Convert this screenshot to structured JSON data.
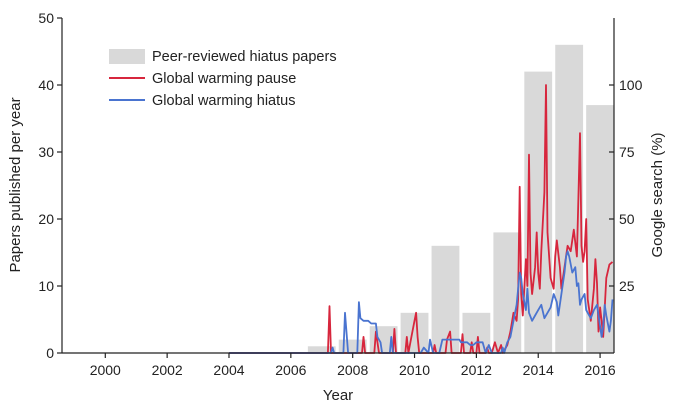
{
  "chart_data": {
    "type": "bar",
    "title": "",
    "xlabel": "Year",
    "ylabel": "Papers published per year",
    "y2label": "Google search (%)",
    "xlim": [
      1998.6,
      2016.45
    ],
    "ylim": [
      0,
      50
    ],
    "y2lim": [
      0,
      125
    ],
    "x_ticks": [
      "2000",
      "2002",
      "2004",
      "2006",
      "2008",
      "2010",
      "2012",
      "2014",
      "2016"
    ],
    "y_ticks": [
      "0",
      "10",
      "20",
      "30",
      "40",
      "50"
    ],
    "y2_ticks": [
      "25",
      "50",
      "75",
      "100"
    ],
    "legend": {
      "position": "top-left",
      "items": [
        {
          "label": "Peer-reviewed hiatus papers",
          "kind": "bar",
          "color": "#d9d9d9"
        },
        {
          "label": "Global warming pause",
          "kind": "line",
          "color": "#d7263d"
        },
        {
          "label": "Global warming hiatus",
          "kind": "line",
          "color": "#4a74d0"
        }
      ]
    },
    "bars": {
      "name": "Peer-reviewed hiatus papers",
      "color": "#d9d9d9",
      "years": [
        2007,
        2008,
        2009,
        2010,
        2011,
        2012,
        2013,
        2014,
        2015,
        2016
      ],
      "values": [
        1,
        2,
        4,
        6,
        16,
        6,
        18,
        42,
        46,
        37
      ]
    },
    "series": [
      {
        "name": "Global warming pause",
        "color": "#d7263d",
        "axis": "right",
        "points": [
          [
            2004.0,
            0
          ],
          [
            2007.0,
            0
          ],
          [
            2007.2,
            0
          ],
          [
            2007.25,
            17.5
          ],
          [
            2007.3,
            0
          ],
          [
            2008.3,
            0
          ],
          [
            2008.35,
            6
          ],
          [
            2008.4,
            0
          ],
          [
            2008.7,
            0
          ],
          [
            2008.75,
            8
          ],
          [
            2008.85,
            0
          ],
          [
            2009.3,
            0
          ],
          [
            2009.35,
            9
          ],
          [
            2009.4,
            0
          ],
          [
            2009.7,
            0
          ],
          [
            2009.75,
            6
          ],
          [
            2009.8,
            0
          ],
          [
            2009.9,
            6
          ],
          [
            2010.0,
            12
          ],
          [
            2010.05,
            15
          ],
          [
            2010.1,
            6
          ],
          [
            2010.15,
            0
          ],
          [
            2010.6,
            0
          ],
          [
            2010.65,
            3
          ],
          [
            2010.7,
            0
          ],
          [
            2011.0,
            0
          ],
          [
            2011.05,
            5
          ],
          [
            2011.15,
            8
          ],
          [
            2011.2,
            0
          ],
          [
            2011.5,
            0
          ],
          [
            2011.55,
            7
          ],
          [
            2011.6,
            0
          ],
          [
            2011.8,
            0
          ],
          [
            2011.85,
            4
          ],
          [
            2011.9,
            0
          ],
          [
            2012.0,
            0
          ],
          [
            2012.05,
            6
          ],
          [
            2012.1,
            0
          ],
          [
            2012.3,
            0
          ],
          [
            2012.35,
            2
          ],
          [
            2012.4,
            0
          ],
          [
            2012.5,
            0
          ],
          [
            2012.6,
            4
          ],
          [
            2012.7,
            0
          ],
          [
            2012.8,
            3
          ],
          [
            2012.85,
            0
          ],
          [
            2013.0,
            3
          ],
          [
            2013.1,
            8
          ],
          [
            2013.2,
            15
          ],
          [
            2013.3,
            12
          ],
          [
            2013.35,
            20
          ],
          [
            2013.4,
            62
          ],
          [
            2013.45,
            22
          ],
          [
            2013.5,
            14
          ],
          [
            2013.6,
            35
          ],
          [
            2013.65,
            25
          ],
          [
            2013.7,
            74
          ],
          [
            2013.75,
            30
          ],
          [
            2013.8,
            22
          ],
          [
            2013.9,
            32
          ],
          [
            2013.95,
            45
          ],
          [
            2014.0,
            30
          ],
          [
            2014.05,
            24
          ],
          [
            2014.1,
            38
          ],
          [
            2014.2,
            60
          ],
          [
            2014.25,
            100
          ],
          [
            2014.3,
            45
          ],
          [
            2014.4,
            28
          ],
          [
            2014.5,
            24
          ],
          [
            2014.55,
            36
          ],
          [
            2014.6,
            42
          ],
          [
            2014.7,
            32
          ],
          [
            2014.75,
            24
          ],
          [
            2014.85,
            32
          ],
          [
            2014.95,
            40
          ],
          [
            2015.05,
            38
          ],
          [
            2015.15,
            46
          ],
          [
            2015.25,
            36
          ],
          [
            2015.3,
            58
          ],
          [
            2015.35,
            82
          ],
          [
            2015.4,
            40
          ],
          [
            2015.45,
            34
          ],
          [
            2015.5,
            38
          ],
          [
            2015.55,
            50
          ],
          [
            2015.6,
            20
          ],
          [
            2015.7,
            12
          ],
          [
            2015.8,
            24
          ],
          [
            2015.85,
            35
          ],
          [
            2015.9,
            26
          ],
          [
            2015.95,
            8
          ],
          [
            2016.0,
            17
          ],
          [
            2016.05,
            12
          ],
          [
            2016.1,
            6
          ],
          [
            2016.2,
            28
          ],
          [
            2016.3,
            33
          ],
          [
            2016.4,
            34
          ]
        ]
      },
      {
        "name": "Global warming hiatus",
        "color": "#4a74d0",
        "axis": "right",
        "points": [
          [
            2004.0,
            0
          ],
          [
            2007.3,
            0
          ],
          [
            2007.35,
            2
          ],
          [
            2007.4,
            0
          ],
          [
            2007.7,
            0
          ],
          [
            2007.75,
            15
          ],
          [
            2007.85,
            0
          ],
          [
            2008.0,
            0
          ],
          [
            2008.15,
            0
          ],
          [
            2008.2,
            19
          ],
          [
            2008.25,
            13
          ],
          [
            2008.35,
            12
          ],
          [
            2008.45,
            12
          ],
          [
            2008.5,
            12
          ],
          [
            2008.6,
            11
          ],
          [
            2008.7,
            11
          ],
          [
            2008.75,
            11
          ],
          [
            2008.8,
            6
          ],
          [
            2008.9,
            4
          ],
          [
            2008.95,
            0
          ],
          [
            2009.2,
            0
          ],
          [
            2009.25,
            6
          ],
          [
            2009.3,
            0
          ],
          [
            2010.2,
            0
          ],
          [
            2010.3,
            2
          ],
          [
            2010.45,
            0
          ],
          [
            2010.5,
            5
          ],
          [
            2010.6,
            0
          ],
          [
            2010.8,
            0
          ],
          [
            2010.9,
            5
          ],
          [
            2011.0,
            5
          ],
          [
            2011.2,
            5
          ],
          [
            2011.35,
            5
          ],
          [
            2011.45,
            5
          ],
          [
            2011.5,
            4
          ],
          [
            2011.6,
            4
          ],
          [
            2011.7,
            4
          ],
          [
            2011.8,
            3
          ],
          [
            2011.9,
            3
          ],
          [
            2012.0,
            4
          ],
          [
            2012.1,
            4
          ],
          [
            2012.2,
            4
          ],
          [
            2012.3,
            0
          ],
          [
            2012.4,
            3
          ],
          [
            2012.5,
            0
          ],
          [
            2012.6,
            0
          ],
          [
            2012.8,
            0
          ],
          [
            2012.85,
            2
          ],
          [
            2012.9,
            0
          ],
          [
            2013.0,
            4
          ],
          [
            2013.1,
            6
          ],
          [
            2013.2,
            12
          ],
          [
            2013.3,
            18
          ],
          [
            2013.4,
            30
          ],
          [
            2013.45,
            28
          ],
          [
            2013.5,
            22
          ],
          [
            2013.6,
            16
          ],
          [
            2013.65,
            24
          ],
          [
            2013.7,
            15
          ],
          [
            2013.8,
            12
          ],
          [
            2013.9,
            14
          ],
          [
            2014.0,
            16
          ],
          [
            2014.1,
            18
          ],
          [
            2014.2,
            13
          ],
          [
            2014.3,
            15
          ],
          [
            2014.4,
            17
          ],
          [
            2014.5,
            22
          ],
          [
            2014.6,
            19
          ],
          [
            2014.65,
            14
          ],
          [
            2014.75,
            22
          ],
          [
            2014.85,
            30
          ],
          [
            2014.9,
            36
          ],
          [
            2014.95,
            38
          ],
          [
            2015.0,
            36
          ],
          [
            2015.1,
            30
          ],
          [
            2015.2,
            32
          ],
          [
            2015.25,
            25
          ],
          [
            2015.3,
            26
          ],
          [
            2015.35,
            18
          ],
          [
            2015.4,
            20
          ],
          [
            2015.5,
            22
          ],
          [
            2015.55,
            16
          ],
          [
            2015.6,
            15
          ],
          [
            2015.7,
            13
          ],
          [
            2015.8,
            16
          ],
          [
            2015.9,
            18
          ],
          [
            2016.0,
            10
          ],
          [
            2016.05,
            6
          ],
          [
            2016.1,
            10
          ],
          [
            2016.15,
            18
          ],
          [
            2016.2,
            14
          ],
          [
            2016.3,
            8
          ],
          [
            2016.35,
            12
          ],
          [
            2016.4,
            20
          ]
        ]
      }
    ]
  }
}
